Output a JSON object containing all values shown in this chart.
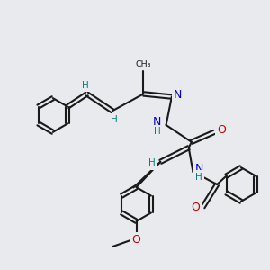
{
  "background_color": "#e8eaed",
  "bond_color": "#1a1a1a",
  "N_color": "#0000dd",
  "O_color": "#cc0000",
  "H_color": "#008080",
  "figsize": [
    3.0,
    3.0
  ],
  "dpi": 100,
  "xlim": [
    0.0,
    9.5
  ],
  "ylim": [
    0.5,
    9.5
  ]
}
